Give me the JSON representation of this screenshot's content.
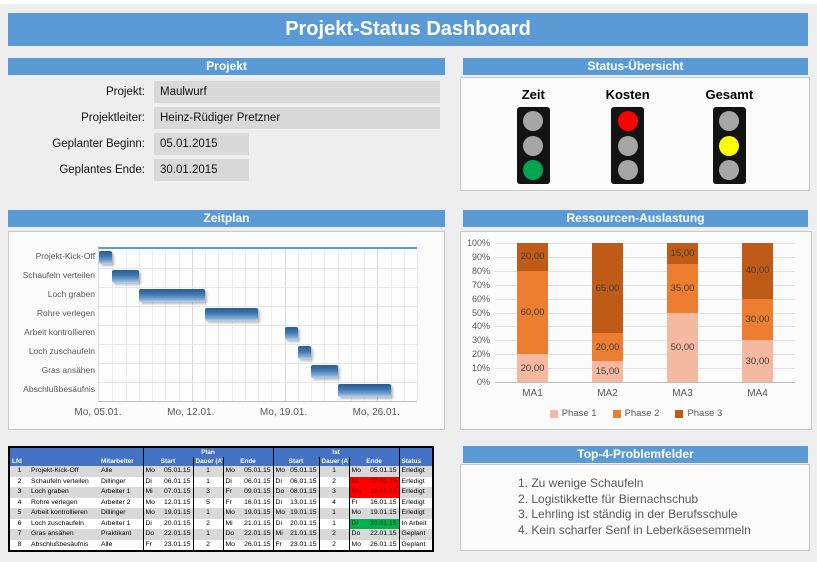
{
  "title": "Projekt-Status Dashboard",
  "colors": {
    "header_blue": "#5B9BD5",
    "table_header_blue": "#4472C4",
    "field_gray": "#D9D9D9",
    "row_alt_gray": "#D9D9D9",
    "flag_red": "#FF0000",
    "flag_green": "#00B050",
    "bulb_off": "#A6A6A6"
  },
  "projekt": {
    "header": "Projekt",
    "fields": [
      {
        "label": "Projekt:",
        "value": "Maulwurf",
        "wide": true
      },
      {
        "label": "Projektleiter:",
        "value": "Heinz-Rüdiger Pretzner",
        "wide": true
      },
      {
        "label": "Geplanter Beginn:",
        "value": "05.01.2015",
        "wide": false
      },
      {
        "label": "Geplantes Ende:",
        "value": "30.01.2015",
        "wide": false
      }
    ]
  },
  "status": {
    "header": "Status-Übersicht",
    "lights": [
      {
        "label": "Zeit",
        "active_index": 2,
        "active_color": "#00A551"
      },
      {
        "label": "Kosten",
        "active_index": 0,
        "active_color": "#FF0000"
      },
      {
        "label": "Gesamt",
        "active_index": 1,
        "active_color": "#FFFF00"
      }
    ]
  },
  "zeitplan": {
    "header": "Zeitplan"
  },
  "ressourcen": {
    "header": "Ressourcen-Auslastung"
  },
  "problems": {
    "header": "Top-4-Problemfelder",
    "items": [
      "Zu wenige Schaufeln",
      "Logistikkette für Biernachschub",
      "Lehrling ist ständig in der Berufsschule",
      "Kein scharfer Senf in Leberkäsesemmeln"
    ]
  },
  "chart_data": [
    {
      "type": "gantt",
      "title": "Zeitplan",
      "x_total_days": 24,
      "x_ticks": [
        {
          "label": "Mo, 05.01.",
          "day": 0
        },
        {
          "label": "Mo, 12.01.",
          "day": 7
        },
        {
          "label": "Mo, 19.01.",
          "day": 14
        },
        {
          "label": "Mo, 26.01.",
          "day": 21
        }
      ],
      "tasks": [
        {
          "name": "Projekt-Kick-Off",
          "start_day": 0,
          "span_days": 1
        },
        {
          "name": "Schaufeln verteilen",
          "start_day": 1,
          "span_days": 2
        },
        {
          "name": "Loch graben",
          "start_day": 3,
          "span_days": 5
        },
        {
          "name": "Rohre verlegen",
          "start_day": 8,
          "span_days": 4
        },
        {
          "name": "Arbeit kontrollieren",
          "start_day": 14,
          "span_days": 1
        },
        {
          "name": "Loch zuschaufeln",
          "start_day": 15,
          "span_days": 1
        },
        {
          "name": "Gras ansähen",
          "start_day": 16,
          "span_days": 2
        },
        {
          "name": "Abschlußbesäufnis",
          "start_day": 18,
          "span_days": 4
        }
      ]
    },
    {
      "type": "bar",
      "subtype": "stacked-100-percent",
      "title": "Ressourcen-Auslastung",
      "categories": [
        "MA1",
        "MA2",
        "MA3",
        "MA4"
      ],
      "series": [
        {
          "name": "Phase 1",
          "color": "#F5B8A0",
          "values": [
            20,
            15,
            50,
            30
          ]
        },
        {
          "name": "Phase 2",
          "color": "#ED7D31",
          "values": [
            60,
            20,
            35,
            30
          ]
        },
        {
          "name": "Phase 3",
          "color": "#C05A17",
          "values": [
            20,
            65,
            15,
            40
          ]
        }
      ],
      "y_ticks_percent": [
        0,
        10,
        20,
        30,
        40,
        50,
        60,
        70,
        80,
        90,
        100
      ],
      "ylim": [
        0,
        100
      ],
      "grid": true,
      "legend_position": "bottom"
    }
  ],
  "table": {
    "headers": {
      "lfd": "Lfd",
      "task": "",
      "mitarbeiter": "Mitarbeiter",
      "plan": "Plan",
      "ist": "Ist",
      "start": "Start",
      "dauer": "Dauer (AT)",
      "ende": "Ende",
      "status": "Status"
    },
    "rows": [
      {
        "nr": "1",
        "task": "Projekt-Kick-Off",
        "who": "Alle",
        "plan_start_d": "Mo",
        "plan_start": "05.01.15",
        "plan_dauer": "1",
        "plan_ende_d": "Mo",
        "plan_ende": "05.01.15",
        "ist_start_d": "Mo",
        "ist_start": "05.01.15",
        "ist_dauer": "1",
        "ist_ende_d": "Mo",
        "ist_ende": "05.01.15",
        "ist_ende_flag": "none",
        "status": "Erledigt"
      },
      {
        "nr": "2",
        "task": "Schaufeln verteilen",
        "who": "Dillinger",
        "plan_start_d": "Di",
        "plan_start": "06.01.15",
        "plan_dauer": "1",
        "plan_ende_d": "Di",
        "plan_ende": "06.01.15",
        "ist_start_d": "Di",
        "ist_start": "06.01.15",
        "ist_dauer": "2",
        "ist_ende_d": "Mi",
        "ist_ende": "07.01.15",
        "ist_ende_flag": "red",
        "status": "Erledigt"
      },
      {
        "nr": "3",
        "task": "Loch graben",
        "who": "Arbeiter 1",
        "plan_start_d": "Mi",
        "plan_start": "07.01.15",
        "plan_dauer": "3",
        "plan_ende_d": "Fr",
        "plan_ende": "09.01.15",
        "ist_start_d": "Do",
        "ist_start": "08.01.15",
        "ist_dauer": "3",
        "ist_ende_d": "Mo",
        "ist_ende": "12.01.15",
        "ist_ende_flag": "red",
        "status": "Erledigt"
      },
      {
        "nr": "4",
        "task": "Rohre verlegen",
        "who": "Arbeiter 2",
        "plan_start_d": "Mo",
        "plan_start": "12.01.15",
        "plan_dauer": "5",
        "plan_ende_d": "Fr",
        "plan_ende": "16.01.15",
        "ist_start_d": "Di",
        "ist_start": "13.01.15",
        "ist_dauer": "4",
        "ist_ende_d": "Fr",
        "ist_ende": "16.01.15",
        "ist_ende_flag": "none",
        "status": "Erledigt"
      },
      {
        "nr": "5",
        "task": "Arbeit kontrollieren",
        "who": "Dillinger",
        "plan_start_d": "Mo",
        "plan_start": "19.01.15",
        "plan_dauer": "1",
        "plan_ende_d": "Mo",
        "plan_ende": "19.01.15",
        "ist_start_d": "Mo",
        "ist_start": "19.01.15",
        "ist_dauer": "1",
        "ist_ende_d": "Mo",
        "ist_ende": "19.01.15",
        "ist_ende_flag": "none",
        "status": "Erledigt"
      },
      {
        "nr": "6",
        "task": "Loch zuschaufeln",
        "who": "Arbeiter 1",
        "plan_start_d": "Di",
        "plan_start": "20.01.15",
        "plan_dauer": "2",
        "plan_ende_d": "Mi",
        "plan_ende": "21.01.15",
        "ist_start_d": "Di",
        "ist_start": "20.01.15",
        "ist_dauer": "1",
        "ist_ende_d": "Di",
        "ist_ende": "20.01.15",
        "ist_ende_flag": "green",
        "status": "In Arbeit"
      },
      {
        "nr": "7",
        "task": "Gras ansähen",
        "who": "Praktikant",
        "plan_start_d": "Do",
        "plan_start": "22.01.15",
        "plan_dauer": "1",
        "plan_ende_d": "Do",
        "plan_ende": "22.01.15",
        "ist_start_d": "Mi",
        "ist_start": "21.01.15",
        "ist_dauer": "2",
        "ist_ende_d": "Do",
        "ist_ende": "22.01.15",
        "ist_ende_flag": "none",
        "status": "Geplant"
      },
      {
        "nr": "8",
        "task": "Abschlußbesäufnis",
        "who": "Alle",
        "plan_start_d": "Fr",
        "plan_start": "23.01.15",
        "plan_dauer": "2",
        "plan_ende_d": "Mo",
        "plan_ende": "26.01.15",
        "ist_start_d": "Fr",
        "ist_start": "23.01.15",
        "ist_dauer": "2",
        "ist_ende_d": "Mo",
        "ist_ende": "26.01.15",
        "ist_ende_flag": "none",
        "status": "Geplant"
      }
    ]
  }
}
